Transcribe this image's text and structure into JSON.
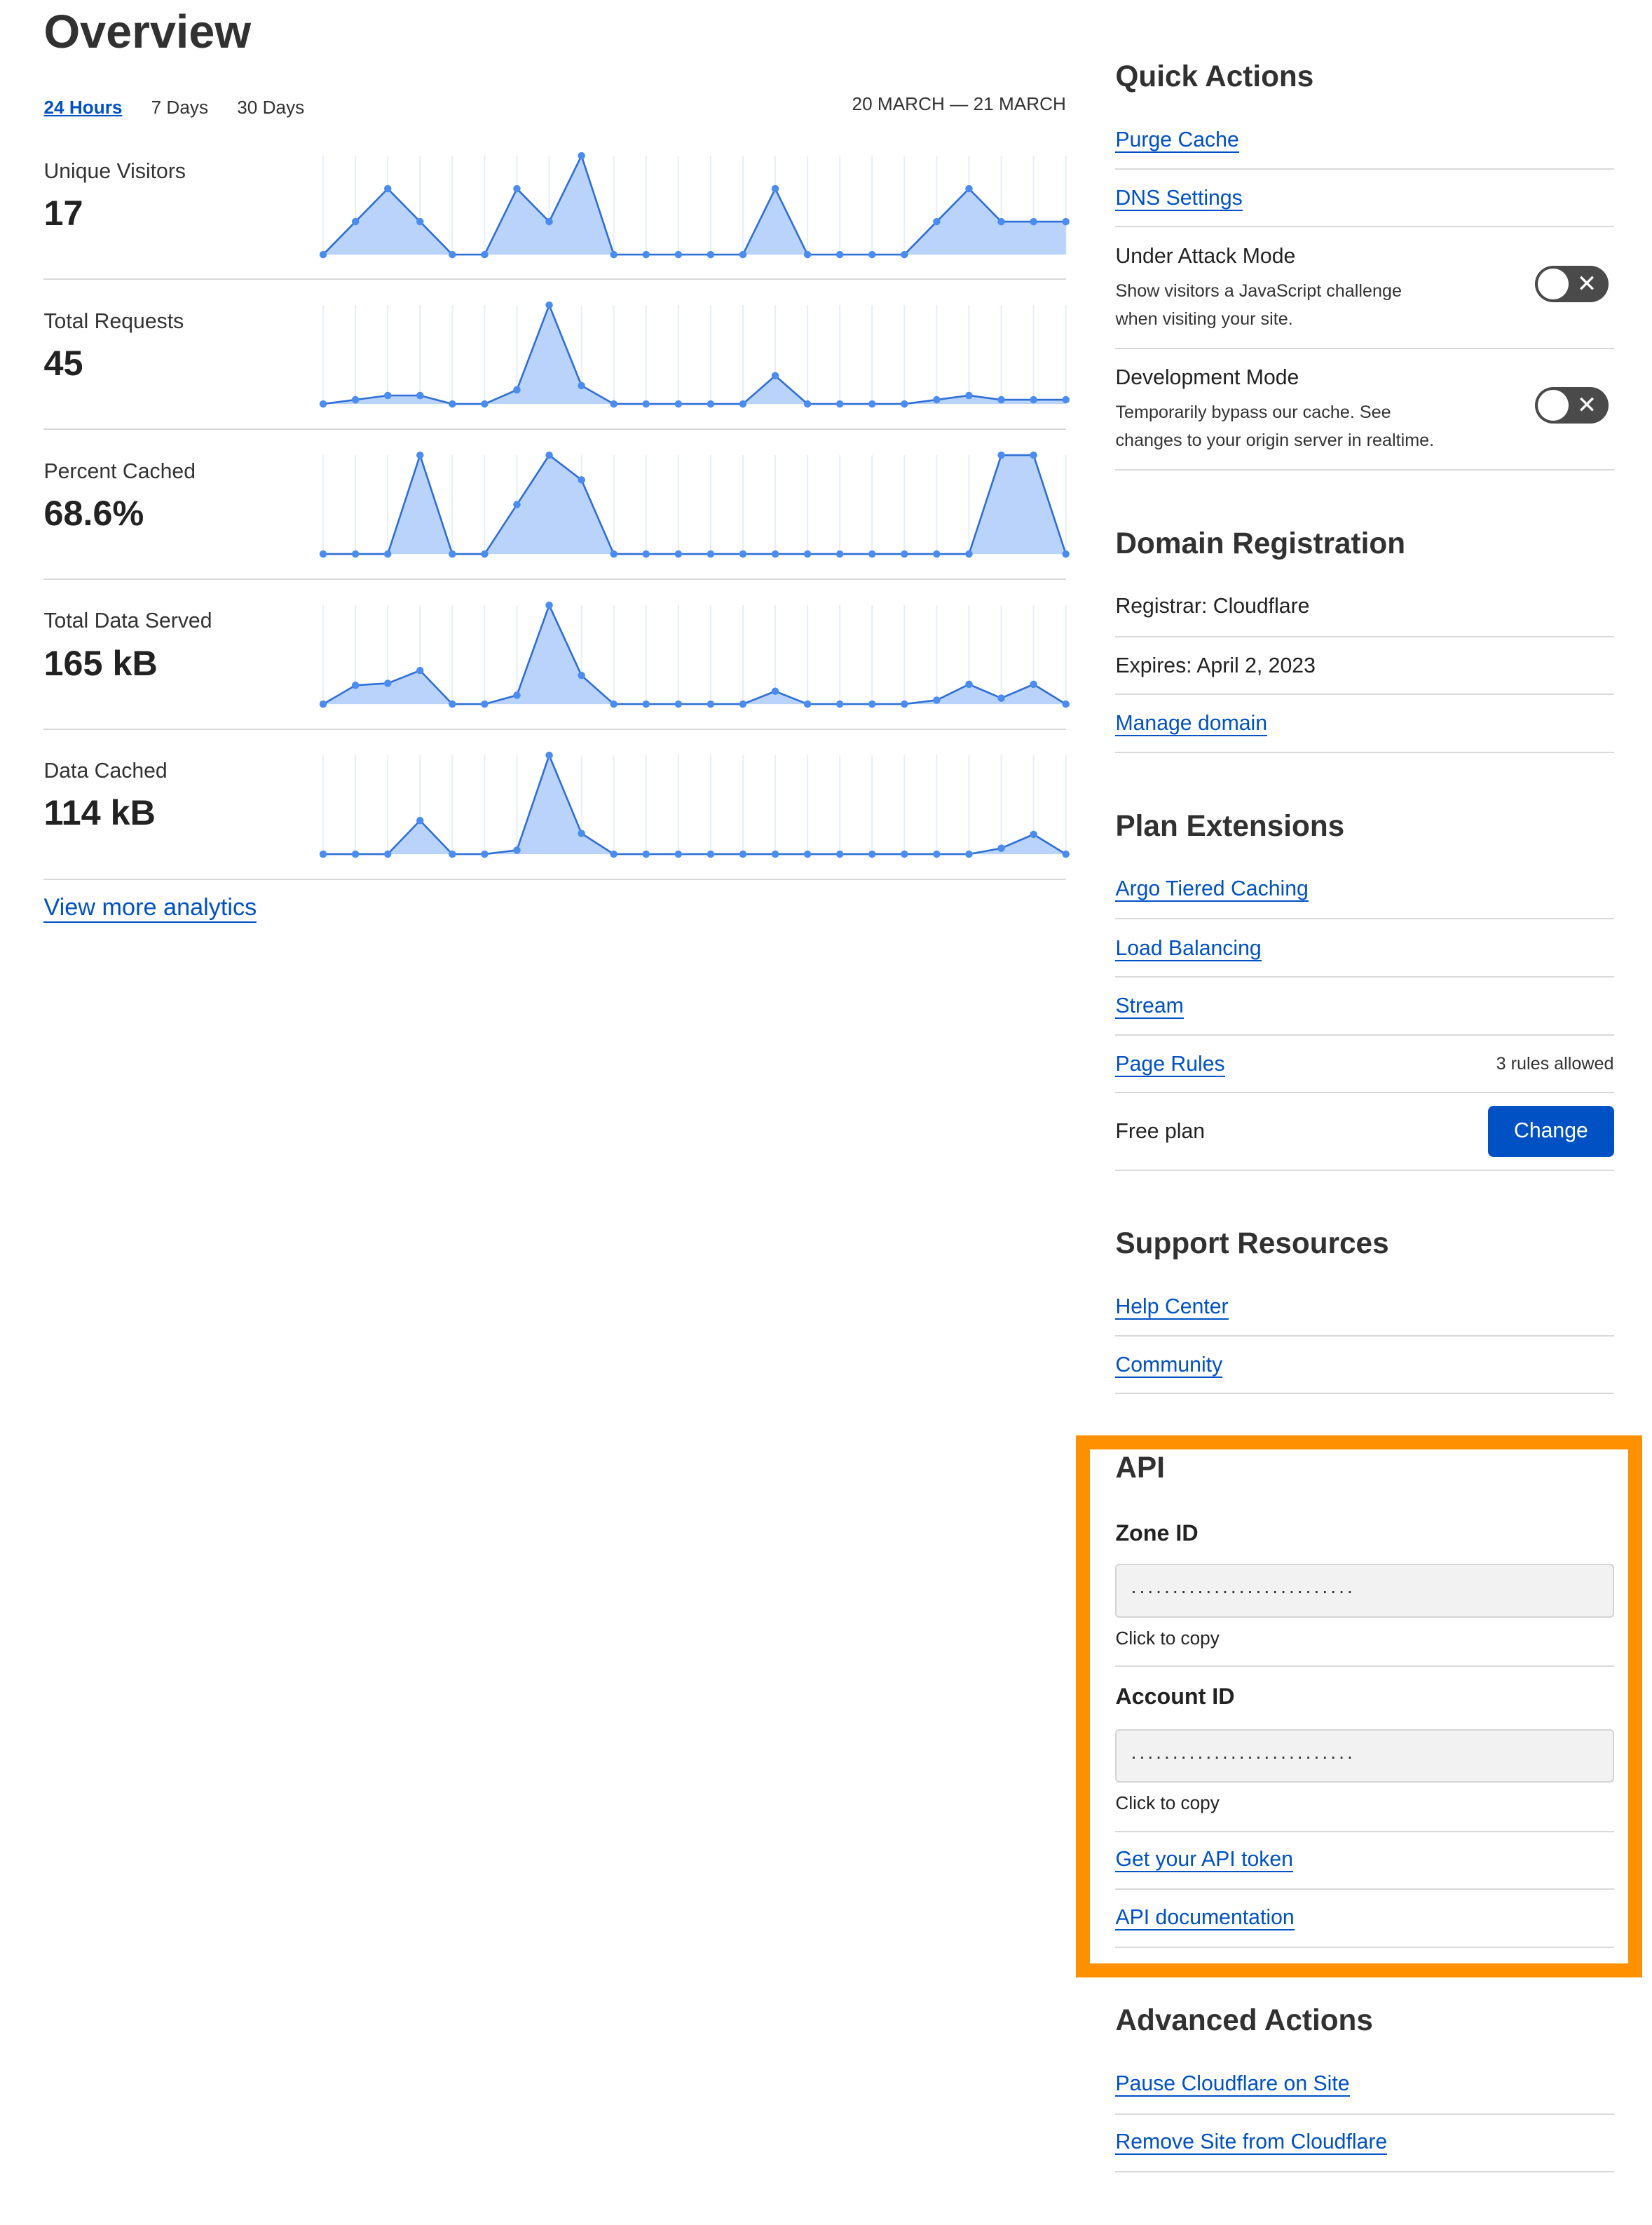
{
  "overview": {
    "title": "Overview",
    "tabs": [
      "24 Hours",
      "7 Days",
      "30 Days"
    ],
    "active_tab": "24 Hours",
    "date_range": "20 MARCH — 21 MARCH",
    "view_more": "View more analytics",
    "series_color": "#4a8cf0",
    "fill_color": "#b9d3fb"
  },
  "chart_data": [
    {
      "type": "area",
      "title": "Unique Visitors",
      "value": "17",
      "values": [
        0,
        1,
        2,
        1,
        0,
        0,
        2,
        1,
        3,
        0,
        0,
        0,
        0,
        0,
        2,
        0,
        0,
        0,
        0,
        1,
        2,
        1,
        1,
        1
      ]
    },
    {
      "type": "area",
      "title": "Total Requests",
      "value": "45",
      "values": [
        0,
        0.6,
        1.2,
        1.2,
        0,
        0,
        2,
        14,
        2.6,
        0,
        0,
        0,
        0,
        0,
        4,
        0,
        0,
        0,
        0,
        0.6,
        1.2,
        0.6,
        0.6,
        0.6
      ]
    },
    {
      "type": "area",
      "title": "Percent Cached",
      "value": "68.6%",
      "values": [
        0,
        0,
        0,
        100,
        0,
        0,
        50,
        100,
        75,
        0,
        0,
        0,
        0,
        0,
        0,
        0,
        0,
        0,
        0,
        0,
        0,
        100,
        100,
        0
      ]
    },
    {
      "type": "area",
      "title": "Total Data Served",
      "value": "165 kB",
      "values": [
        0,
        19,
        21,
        34,
        0,
        0,
        9,
        100,
        29,
        0,
        0,
        0,
        0,
        0,
        13,
        0,
        0,
        0,
        0,
        4,
        20,
        6,
        20,
        0
      ]
    },
    {
      "type": "area",
      "title": "Data Cached",
      "value": "114 kB",
      "values": [
        0,
        0,
        0,
        34,
        0,
        0,
        4,
        100,
        21,
        0,
        0,
        0,
        0,
        0,
        0,
        0,
        0,
        0,
        0,
        0,
        0,
        6,
        20,
        0
      ]
    }
  ],
  "quick_actions": {
    "title": "Quick Actions",
    "purge_cache": "Purge Cache",
    "dns_settings": "DNS Settings",
    "under_attack": {
      "title": "Under Attack Mode",
      "desc1": "Show visitors a JavaScript challenge",
      "desc2": "when visiting your site.",
      "enabled": false
    },
    "dev_mode": {
      "title": "Development Mode",
      "desc1": "Temporarily bypass our cache. See",
      "desc2": "changes to your origin server in realtime.",
      "enabled": false
    }
  },
  "domain_registration": {
    "title": "Domain Registration",
    "registrar": "Registrar: Cloudflare",
    "expires": "Expires: April 2, 2023",
    "manage": "Manage domain"
  },
  "plan_extensions": {
    "title": "Plan Extensions",
    "items": [
      "Argo Tiered Caching",
      "Load Balancing",
      "Stream",
      "Page Rules"
    ],
    "page_rules_note": "3 rules allowed",
    "plan": "Free plan",
    "change": "Change"
  },
  "support": {
    "title": "Support Resources",
    "help_center": "Help Center",
    "community": "Community"
  },
  "api": {
    "title": "API",
    "highlight_color": "#ff9000",
    "zone_label": "Zone ID",
    "zone_value": "...........................",
    "account_label": "Account ID",
    "account_value": "...........................",
    "click_to_copy": "Click to copy",
    "get_token": "Get your API token",
    "docs": "API documentation"
  },
  "advanced": {
    "title": "Advanced Actions",
    "pause": "Pause Cloudflare on Site",
    "remove": "Remove Site from Cloudflare"
  }
}
